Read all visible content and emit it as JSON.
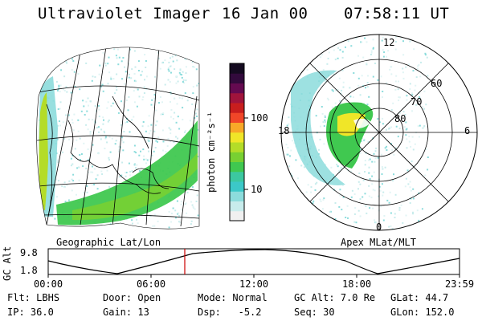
{
  "header": {
    "instrument": "Ultraviolet Imager",
    "date": "16 Jan 00",
    "time": "07:58:11 UT"
  },
  "colorbar": {
    "unit_label": "photon cm⁻²s⁻¹",
    "tick_labels": [
      "100",
      "10"
    ],
    "colors": [
      "#f0f0f0",
      "#c8ecec",
      "#8cdcdc",
      "#3cc8c8",
      "#3cc8a0",
      "#40c850",
      "#78d032",
      "#b4dc28",
      "#f0e628",
      "#f8a828",
      "#f04628",
      "#c81e1e",
      "#a0143c",
      "#640a50",
      "#320a3c",
      "#140a20"
    ]
  },
  "geo_map": {
    "label": "Geographic Lat/Lon"
  },
  "polar_plot": {
    "label": "Apex MLat/MLT",
    "mlt_labels": [
      "12",
      "18",
      "6",
      "0"
    ],
    "mlat_labels": [
      "60",
      "70",
      "80"
    ]
  },
  "altitude_plot": {
    "ylabel": "GC Alt",
    "ytick_labels": [
      "9.8",
      "1.8"
    ],
    "xtick_labels": [
      "00:00",
      "06:00",
      "12:00",
      "18:00",
      "23:59"
    ],
    "marker_time": "07:58"
  },
  "status": {
    "row1": [
      {
        "label": "Flt:",
        "value": "LBHS"
      },
      {
        "label": "Door:",
        "value": "Open"
      },
      {
        "label": "Mode:",
        "value": "Normal"
      },
      {
        "label": "GC Alt:",
        "value": "7.0 Re"
      },
      {
        "label": "GLat:",
        "value": "44.7"
      }
    ],
    "row2": [
      {
        "label": "IP:",
        "value": "36.0"
      },
      {
        "label": "Gain:",
        "value": "13"
      },
      {
        "label": "Dsp:",
        "value": "-5.2"
      },
      {
        "label": "Seq:",
        "value": "30"
      },
      {
        "label": "GLon:",
        "value": "152.0"
      }
    ]
  },
  "colors": {
    "aurora_green": "#40c850",
    "aurora_yellow": "#f0e628",
    "aurora_cyan": "#3cc8c8",
    "marker_red": "#cc0000"
  }
}
